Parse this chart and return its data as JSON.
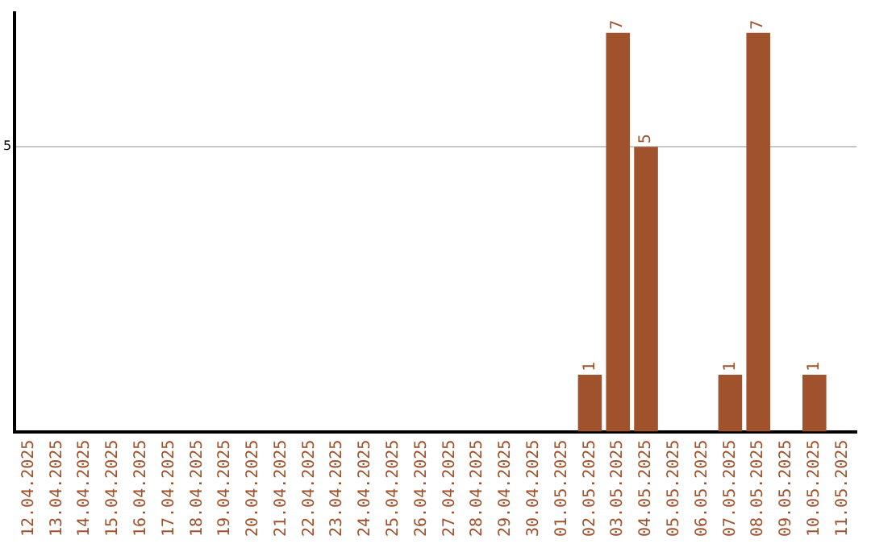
{
  "chart_data": {
    "type": "bar",
    "categories": [
      "12.04.2025",
      "13.04.2025",
      "14.04.2025",
      "15.04.2025",
      "16.04.2025",
      "17.04.2025",
      "18.04.2025",
      "19.04.2025",
      "20.04.2025",
      "21.04.2025",
      "22.04.2025",
      "23.04.2025",
      "24.04.2025",
      "25.04.2025",
      "26.04.2025",
      "27.04.2025",
      "28.04.2025",
      "29.04.2025",
      "30.04.2025",
      "01.05.2025",
      "02.05.2025",
      "03.05.2025",
      "04.05.2025",
      "05.05.2025",
      "06.05.2025",
      "07.05.2025",
      "08.05.2025",
      "09.05.2025",
      "10.05.2025",
      "11.05.2025"
    ],
    "values": [
      null,
      null,
      null,
      null,
      null,
      null,
      null,
      null,
      null,
      null,
      null,
      null,
      null,
      null,
      null,
      null,
      null,
      null,
      null,
      null,
      1,
      7,
      5,
      null,
      null,
      1,
      7,
      null,
      1,
      null
    ],
    "data_labels": true,
    "color": "#a0522d",
    "ylim": [
      0,
      7.35
    ],
    "yticks": [
      5
    ],
    "grid": "y",
    "legend": false
  }
}
